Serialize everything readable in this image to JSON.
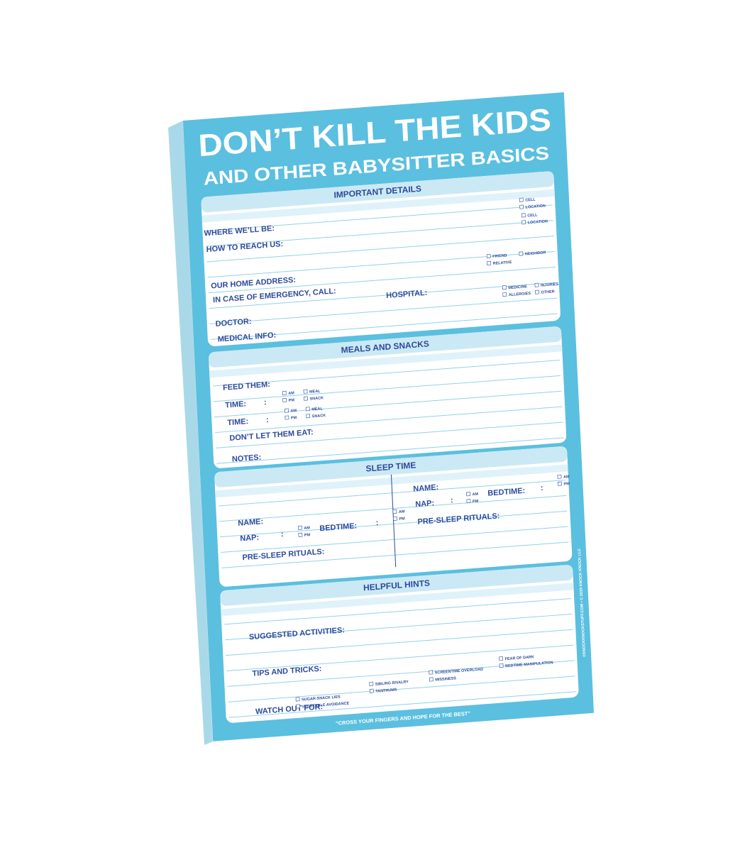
{
  "title": "DON’T KILL THE KIDS",
  "subtitle": "AND OTHER BABYSITTER BASICS",
  "sections": [
    {
      "heading": "IMPORTANT DETAILS",
      "fields": [
        {
          "label": "WHERE WE’LL BE:",
          "options": [
            "CELL",
            "LOCATION"
          ]
        },
        {
          "label": "HOW TO REACH US:",
          "options": [
            "CELL",
            "LOCATION"
          ]
        },
        {
          "label": "OUR HOME ADDRESS:",
          "options": [
            "FRIEND",
            "NEIGHBOR",
            "RELATIVE"
          ]
        },
        {
          "label": "IN CASE OF EMERGENCY, CALL:"
        },
        {
          "label": "HOSPITAL:"
        },
        {
          "label": "DOCTOR:",
          "options": [
            "MEDICINE",
            "INJURIES",
            "ALLERGIES",
            "OTHER"
          ]
        },
        {
          "label": "MEDICAL INFO:"
        }
      ]
    },
    {
      "heading": "MEALS AND SNACKS",
      "fields": [
        {
          "label": "FEED THEM:"
        },
        {
          "label": "TIME:",
          "separator": ":",
          "options": [
            "AM",
            "PM",
            "MEAL",
            "SNACK"
          ]
        },
        {
          "label": "TIME:",
          "separator": ":",
          "options": [
            "AM",
            "PM",
            "MEAL",
            "SNACK"
          ]
        },
        {
          "label": "DON’T LET THEM EAT:"
        },
        {
          "label": "NOTES:"
        }
      ]
    },
    {
      "heading": "SLEEP TIME",
      "columns": [
        {
          "fields": [
            {
              "label": "NAME:"
            },
            {
              "label": "NAP:",
              "separator": ":",
              "options": [
                "AM",
                "PM"
              ]
            },
            {
              "label": "BEDTIME:",
              "separator": ":",
              "options": [
                "AM",
                "PM"
              ]
            },
            {
              "label": "PRE-SLEEP RITUALS:"
            }
          ]
        },
        {
          "fields": [
            {
              "label": "NAME:"
            },
            {
              "label": "NAP:",
              "separator": ":",
              "options": [
                "AM",
                "PM"
              ]
            },
            {
              "label": "BEDTIME:",
              "separator": ":",
              "options": [
                "AM",
                "PM"
              ]
            },
            {
              "label": "PRE-SLEEP RITUALS:"
            }
          ]
        }
      ]
    },
    {
      "heading": "HELPFUL HINTS",
      "fields": [
        {
          "label": "SUGGESTED ACTIVITIES:"
        },
        {
          "label": "TIPS AND TRICKS:"
        },
        {
          "label": "WATCH OUT FOR:",
          "options": [
            "SUGAR-SNACK LIES",
            "VEGETABLE AVOIDANCE",
            "SIBLING RIVALRY",
            "TANTRUMS",
            "SCREENTIME OVERLOAD",
            "MISSINESS",
            "FEAR OF DARK",
            "BEDTIME MANIPULATION"
          ]
        }
      ]
    }
  ],
  "footer": "“CROSS YOUR FINGERS AND HOPE FOR THE BEST”",
  "copyright": "©KNOCKKNOCKSTUFF.COM • © 2019 KNOCK KNOCK LLC"
}
